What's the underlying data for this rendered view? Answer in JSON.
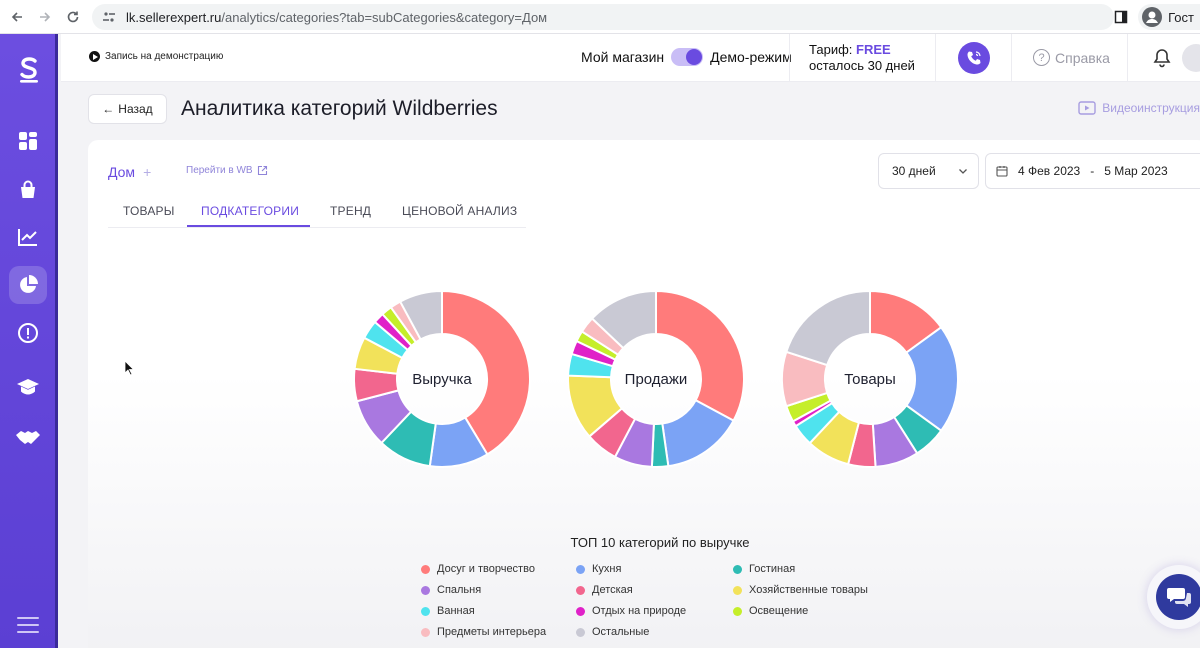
{
  "browser": {
    "url_host": "lk.sellerexpert.ru",
    "url_path": "/analytics/categories?tab=subCategories&category=Дом",
    "profile_label": "Гост"
  },
  "header": {
    "record_label": "Запись на демонстрацию",
    "store_label": "Мой магазин",
    "demo_label": "Демо-режим",
    "tariff_label": "Тариф:",
    "tariff_value": "FREE",
    "tariff_remaining": "осталось 30 дней",
    "help_label": "Справка"
  },
  "page": {
    "back_label": "Назад",
    "title": "Аналитика категорий Wildberries",
    "video_label": "Видеоинструкция"
  },
  "filters": {
    "category": "Дом",
    "go_wb": "Перейти в WB",
    "period": "30 дней",
    "date_from": "4 Фев 2023",
    "date_sep": "-",
    "date_to": "5 Мар 2023"
  },
  "tabs": [
    {
      "label": "ТОВАРЫ"
    },
    {
      "label": "ПОДКАТЕГОРИИ"
    },
    {
      "label": "ТРЕНД"
    },
    {
      "label": "ЦЕНОВОЙ АНАЛИЗ"
    }
  ],
  "colors": {
    "accent": "#6a4be0",
    "sidebar": "#5b3fd3"
  },
  "chart_data": [
    {
      "type": "pie",
      "title": "Выручка",
      "categories": [
        "Досуг и творчество",
        "Кухня",
        "Гостиная",
        "Спальня",
        "Детская",
        "Хозяйственные товары",
        "Ванная",
        "Отдых на природе",
        "Освещение",
        "Предметы интерьера",
        "Остальные"
      ],
      "values": [
        42,
        11,
        10,
        9,
        6,
        6,
        3.5,
        2,
        2,
        2,
        8
      ]
    },
    {
      "type": "pie",
      "title": "Продажи",
      "categories": [
        "Досуг и творчество",
        "Кухня",
        "Гостиная",
        "Спальня",
        "Детская",
        "Хозяйственные товары",
        "Ванная",
        "Отдых на природе",
        "Освещение",
        "Предметы интерьера",
        "Остальные"
      ],
      "values": [
        33,
        15,
        3,
        7,
        6,
        12,
        4,
        2.5,
        2,
        3,
        13
      ]
    },
    {
      "type": "pie",
      "title": "Товары",
      "categories": [
        "Досуг и творчество",
        "Кухня",
        "Гостиная",
        "Спальня",
        "Детская",
        "Хозяйственные товары",
        "Ванная",
        "Отдых на природе",
        "Освещение",
        "Предметы интерьера",
        "Остальные"
      ],
      "values": [
        15,
        20,
        6,
        8,
        5,
        8,
        4,
        1,
        3,
        10,
        20
      ]
    }
  ],
  "legend": {
    "title": "ТОП 10 категорий по выручке",
    "items": [
      {
        "label": "Досуг и творчество",
        "color": "#ff7b7b"
      },
      {
        "label": "Кухня",
        "color": "#7ba3f5"
      },
      {
        "label": "Гостиная",
        "color": "#2ebcb4"
      },
      {
        "label": "Спальня",
        "color": "#a978e0"
      },
      {
        "label": "Детская",
        "color": "#f2668e"
      },
      {
        "label": "Хозяйственные товары",
        "color": "#f2e25a"
      },
      {
        "label": "Ванная",
        "color": "#4fe3ee"
      },
      {
        "label": "Отдых на природе",
        "color": "#e021c8"
      },
      {
        "label": "Освещение",
        "color": "#c5ee2a"
      },
      {
        "label": "Предметы интерьера",
        "color": "#f9bcc0"
      },
      {
        "label": "Остальные",
        "color": "#c9c9d4"
      }
    ]
  }
}
